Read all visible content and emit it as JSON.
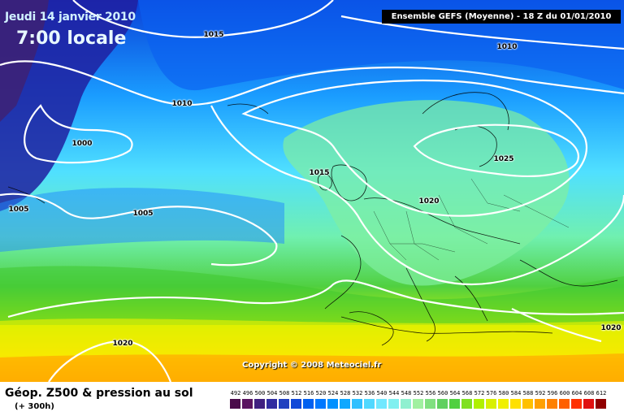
{
  "header": {
    "date": "Jeudi 14 janvier 2010",
    "time": "7:00 locale",
    "run": "Ensemble GEFS (Moyenne)  - 18 Z du 01/01/2010"
  },
  "copyright": "Copyright © 2008 Meteociel.fr",
  "footer": {
    "title": "Géop. Z500 & pression au sol",
    "subtitle": "(+ 300h)"
  },
  "isobar_labels": [
    "1015",
    "1010",
    "1010",
    "1000",
    "1005",
    "1005",
    "1015",
    "1020",
    "1025",
    "1020",
    "1020"
  ],
  "legend": {
    "values": [
      "492",
      "496",
      "500",
      "504",
      "508",
      "512",
      "516",
      "520",
      "524",
      "528",
      "532",
      "536",
      "540",
      "544",
      "548",
      "552",
      "556",
      "560",
      "564",
      "568",
      "572",
      "576",
      "580",
      "584",
      "588",
      "592",
      "596",
      "600",
      "604",
      "608",
      "612"
    ],
    "colors": [
      "#4a0a4a",
      "#5a1460",
      "#402080",
      "#302ca0",
      "#2040c0",
      "#1048d8",
      "#0060f0",
      "#0078ff",
      "#0090ff",
      "#10a8ff",
      "#30c0ff",
      "#50d8ff",
      "#70e8ff",
      "#80f0f0",
      "#90f0d0",
      "#a0f0a0",
      "#80e080",
      "#60d060",
      "#50d040",
      "#80e020",
      "#b0f000",
      "#d8f000",
      "#f0f000",
      "#ffe000",
      "#ffc000",
      "#ffa000",
      "#ff8000",
      "#ff6000",
      "#ff3000",
      "#e01010",
      "#900000"
    ]
  }
}
